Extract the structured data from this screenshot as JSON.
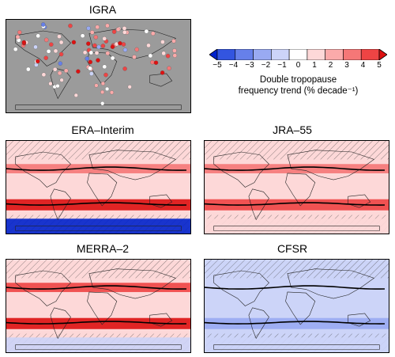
{
  "chart_data": [
    {
      "type": "heatmap",
      "title": "IGRA",
      "note_type": "station_points",
      "stations_positive_hemisphere": "north",
      "land_color": "#9b9b9b"
    },
    {
      "type": "heatmap",
      "title": "ERA–Interim",
      "nh_band_trend": 2.5,
      "sh_band_trend": 4.5,
      "antarctic_trend": -5,
      "background_trend": 0.5,
      "hatched": true
    },
    {
      "type": "heatmap",
      "title": "JRA–55",
      "nh_band_trend": 2.5,
      "sh_band_trend": 4.0,
      "antarctic_trend": 0.5,
      "background_trend": 0.5,
      "hatched": true
    },
    {
      "type": "heatmap",
      "title": "MERRA–2",
      "nh_band_trend": 3.5,
      "sh_band_trend": 4.5,
      "antarctic_trend": -1.0,
      "background_trend": 0.5,
      "hatched": true
    },
    {
      "type": "heatmap",
      "title": "CFSR",
      "nh_band_trend": -1.5,
      "sh_band_trend": -2.5,
      "antarctic_trend": -1.0,
      "background_trend": -1.0,
      "hatched": true
    }
  ],
  "colorbar": {
    "ticks": [
      "−5",
      "−4",
      "−3",
      "−2",
      "−1",
      "0",
      "1",
      "2",
      "3",
      "4",
      "5"
    ],
    "label_line1": "Double tropopause",
    "label_line2": "frequency trend (% decade⁻¹)",
    "colors": [
      "#0022cc",
      "#3355e0",
      "#6680ea",
      "#99aaf2",
      "#ccd4f8",
      "#ffffff",
      "#fdd8d8",
      "#fbaaaa",
      "#f57777",
      "#ee4444",
      "#dd1111"
    ]
  }
}
